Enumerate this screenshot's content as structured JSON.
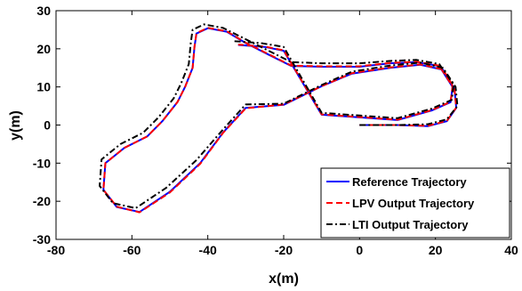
{
  "chart_data": {
    "type": "line",
    "title": "",
    "xlabel": "x(m)",
    "ylabel": "y(m)",
    "xlim": [
      -80,
      40
    ],
    "ylim": [
      -30,
      30
    ],
    "xticks": [
      -80,
      -60,
      -40,
      -20,
      0,
      20,
      40
    ],
    "yticks": [
      -30,
      -20,
      -10,
      0,
      10,
      20,
      30
    ],
    "grid": false,
    "legend_position": "bottom-right",
    "series": [
      {
        "name": "Reference Trajectory",
        "color": "#0000ff",
        "style": "solid",
        "x": [
          0,
          10,
          18,
          23,
          25.5,
          25,
          22,
          16,
          8,
          -2,
          -10,
          -20,
          -30,
          -36,
          -42,
          -50,
          -58,
          -64,
          -67.5,
          -67,
          -62,
          -56,
          -52,
          -48,
          -46,
          -44,
          -43.5,
          -43,
          -40,
          -35,
          -30,
          -24,
          -18,
          -10,
          0,
          8,
          15,
          21,
          24.5,
          24,
          19,
          10,
          0,
          -10,
          -20,
          -25,
          -32
        ],
        "y": [
          0,
          0,
          -0.3,
          1,
          4.5,
          9.5,
          14.5,
          15.8,
          15,
          13.5,
          10.2,
          5.3,
          4.5,
          -2,
          -10,
          -17.5,
          -22.8,
          -21.5,
          -17,
          -10,
          -6,
          -3,
          1,
          6,
          10,
          15,
          20.5,
          24,
          25.4,
          24.5,
          21.5,
          18.5,
          15.5,
          15.3,
          15.3,
          16.2,
          16.5,
          15.5,
          10,
          6,
          3.8,
          1.3,
          2,
          2.7,
          19.5,
          20.5,
          21
        ]
      },
      {
        "name": "LPV Output Trajectory",
        "color": "#ff0000",
        "style": "dashed",
        "x": [
          0,
          10,
          18,
          23,
          25.5,
          25,
          22,
          16,
          8,
          -2,
          -10,
          -20,
          -30,
          -36,
          -42,
          -50,
          -58,
          -64,
          -67.5,
          -67,
          -62,
          -56,
          -52,
          -48,
          -46,
          -44,
          -43.5,
          -43,
          -40,
          -35,
          -30,
          -24,
          -18,
          -10,
          0,
          8,
          15,
          21,
          24.5,
          24,
          19,
          10,
          0,
          -10,
          -20,
          -25,
          -32
        ],
        "y": [
          0,
          0,
          -0.2,
          1.1,
          4.6,
          9.6,
          14.6,
          15.9,
          15.1,
          13.6,
          10.2,
          5.4,
          4.4,
          -2.1,
          -10.2,
          -17.7,
          -22.9,
          -21.4,
          -17,
          -10,
          -6,
          -3,
          1,
          6,
          10,
          15,
          20.6,
          24.1,
          25.5,
          24.6,
          21.6,
          18.6,
          15.6,
          15.4,
          15.4,
          16.3,
          16.6,
          15.6,
          10.1,
          6.1,
          3.9,
          1.4,
          2.1,
          2.8,
          19.6,
          20.6,
          21.1
        ]
      },
      {
        "name": "LTI Output Trajectory",
        "color": "#000000",
        "style": "dashdot",
        "x": [
          0,
          10,
          18,
          23,
          25.8,
          25.3,
          22,
          16,
          8,
          -2,
          -10,
          -20,
          -30,
          -36,
          -43,
          -51,
          -59,
          -65,
          -68.5,
          -68,
          -63,
          -57,
          -53,
          -49,
          -47,
          -45,
          -44.5,
          -44,
          -41,
          -36,
          -30,
          -24,
          -18,
          -10,
          0,
          8,
          15,
          21,
          24.8,
          24.3,
          19,
          10,
          0,
          -10,
          -20,
          -26,
          -33
        ],
        "y": [
          0,
          0,
          0.2,
          1.5,
          5,
          10,
          15,
          16.4,
          15.6,
          14,
          10.5,
          5.6,
          5.4,
          -1.2,
          -9.2,
          -16.5,
          -21.8,
          -20.5,
          -16,
          -9,
          -5,
          -2,
          2,
          7,
          11,
          16,
          21.5,
          25,
          26.4,
          25.5,
          22.5,
          19.5,
          16.5,
          16.2,
          16.2,
          16.8,
          17.1,
          16,
          10.6,
          6.6,
          4.3,
          1.8,
          2.5,
          3.2,
          20.5,
          21.5,
          22
        ]
      }
    ]
  }
}
